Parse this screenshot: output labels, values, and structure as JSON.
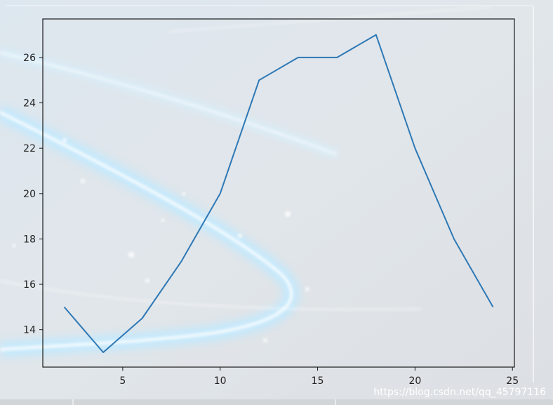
{
  "chart_data": {
    "type": "line",
    "title": "",
    "xlabel": "",
    "ylabel": "",
    "x": [
      2,
      4,
      6,
      8,
      10,
      12,
      14,
      16,
      18,
      20,
      22,
      24
    ],
    "series": [
      {
        "values": [
          15,
          13,
          14.5,
          17,
          20,
          25,
          26,
          26,
          27,
          22,
          18,
          15
        ],
        "color": "#2e78b5"
      }
    ],
    "xlim": [
      0.9,
      25.1
    ],
    "ylim": [
      12.35,
      27.7
    ],
    "xticks": [
      5,
      10,
      15,
      20,
      25
    ],
    "yticks": [
      14,
      16,
      18,
      20,
      22,
      24,
      26
    ],
    "grid": false,
    "legend": "none"
  },
  "watermark": "https://blog.csdn.net/qq_45797116",
  "colors": {
    "line": "#2e78b5",
    "frame": "#1a1a1a",
    "background": "#dfe3e7",
    "glow": "#ffffff"
  }
}
